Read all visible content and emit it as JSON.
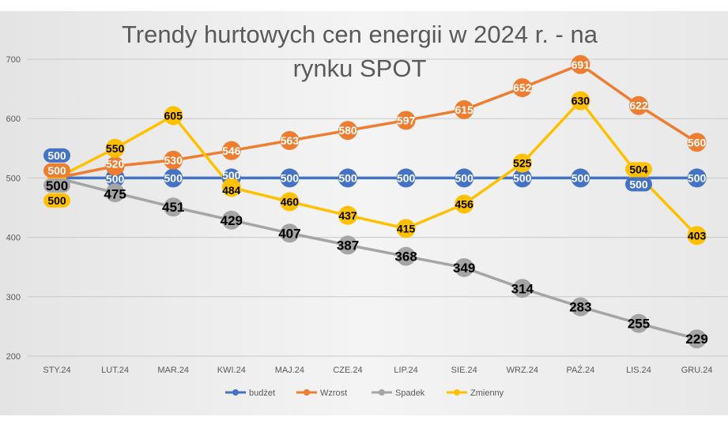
{
  "chart_data": {
    "type": "line",
    "title": "Trendy hurtowych cen energii w 2024 r. - na rynku SPOT",
    "title_lines": [
      "Trendy hurtowych cen energii w 2024 r. - na",
      "rynku SPOT"
    ],
    "categories": [
      "STY.24",
      "LUT.24",
      "MAR.24",
      "KWI.24",
      "MAJ.24",
      "CZE.24",
      "LIP.24",
      "SIE.24",
      "WRZ.24",
      "PAŹ.24",
      "LIS.24",
      "GRU.24"
    ],
    "ylim": [
      200,
      700
    ],
    "yticks": [
      200,
      300,
      400,
      500,
      600,
      700
    ],
    "grid": true,
    "legend": "bottom",
    "series": [
      {
        "name": "budżet",
        "color": "#4472C4",
        "label_color": "#ffffff",
        "values": [
          500,
          500,
          500,
          500,
          500,
          500,
          500,
          500,
          500,
          500,
          500,
          500
        ]
      },
      {
        "name": "Wzrost",
        "color": "#ED7D31",
        "label_color": "#ffffff",
        "values": [
          500,
          520,
          530,
          546,
          563,
          580,
          597,
          615,
          652,
          691,
          622,
          560
        ]
      },
      {
        "name": "Spadek",
        "color": "#A5A5A5",
        "label_color": "#000000",
        "values": [
          500,
          475,
          451,
          429,
          407,
          387,
          368,
          349,
          314,
          283,
          255,
          229
        ]
      },
      {
        "name": "Zmienny",
        "color": "#FFC000",
        "label_color": "#000000",
        "values": [
          500,
          550,
          605,
          484,
          460,
          437,
          415,
          456,
          525,
          630,
          504,
          403
        ]
      }
    ]
  }
}
